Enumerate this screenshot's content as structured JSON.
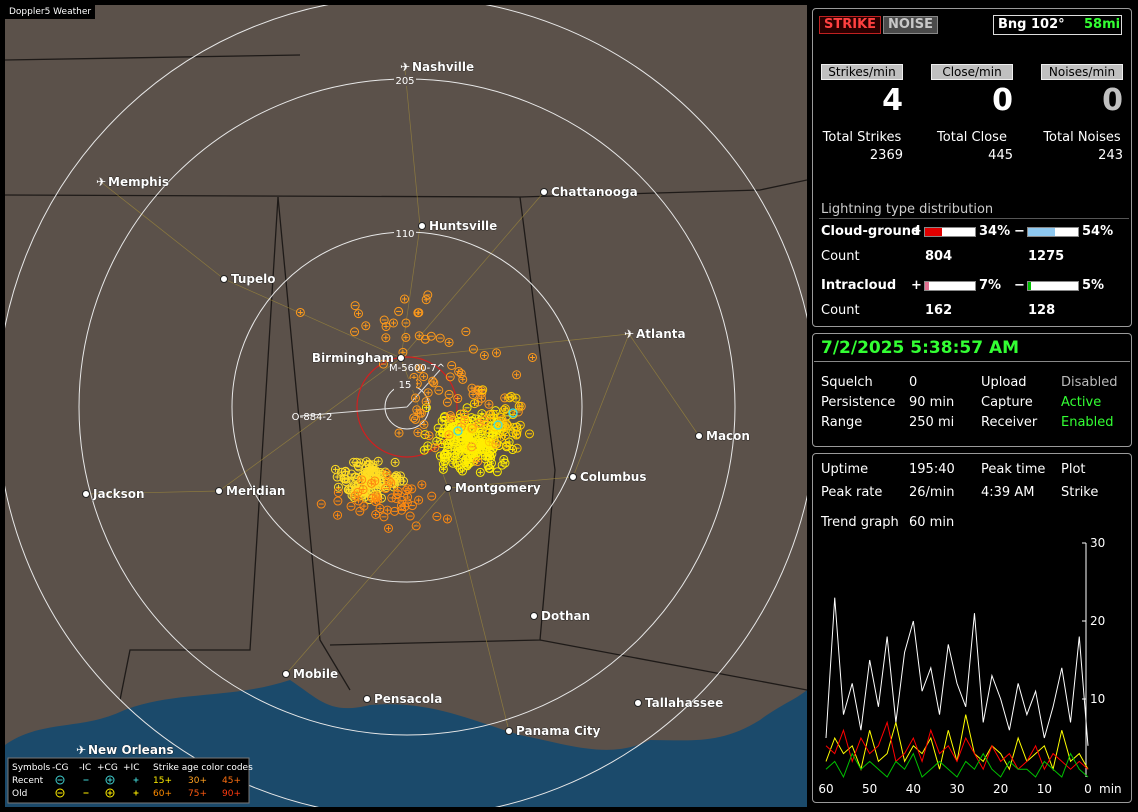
{
  "window": {
    "title": "Doppler5 Weather"
  },
  "map": {
    "cities": [
      "Nashville",
      "Memphis",
      "Chattanooga",
      "Huntsville",
      "Tupelo",
      "Atlanta",
      "Birmingham",
      "Macon",
      "Jackson",
      "Meridian",
      "Montgomery",
      "Columbus",
      "Dothan",
      "Mobile",
      "Pensacola",
      "Tallahassee",
      "Panama City",
      "New Orleans"
    ],
    "range_labels": [
      205,
      110,
      15
    ],
    "storm_labels": [
      "M-5600-7^",
      "O-884-2"
    ]
  },
  "legend": {
    "symbols_label": "Symbols",
    "columns": [
      "-CG",
      "-IC",
      "+CG",
      "+IC"
    ],
    "rows": [
      "Recent",
      "Old"
    ],
    "age_title": "Strike age color codes",
    "ages": [
      [
        "15+",
        "30+",
        "45+"
      ],
      [
        "60+",
        "75+",
        "90+"
      ]
    ]
  },
  "status": {
    "buttons": [
      "STRIKE",
      "NOISE"
    ],
    "bearing": "Bng 102°",
    "distance": "58mi",
    "rate_labels": [
      "Strikes/min",
      "Close/min",
      "Noises/min"
    ],
    "rates": [
      4,
      0,
      0
    ],
    "total_labels": [
      "Total Strikes",
      "Total Close",
      "Total Noises"
    ],
    "totals": [
      2369,
      445,
      243
    ]
  },
  "distribution": {
    "title": "Lightning type distribution",
    "count_label": "Count",
    "rows": [
      {
        "name": "Cloud-ground",
        "positive": {
          "sign": "+",
          "value": 34,
          "label": "34%",
          "count": 804,
          "color": "#e00000"
        },
        "negative": {
          "sign": "−",
          "value": 54,
          "label": "54%",
          "count": 1275,
          "color": "#8ec8f0"
        }
      },
      {
        "name": "Intracloud",
        "positive": {
          "sign": "+",
          "value": 7,
          "label": "7%",
          "count": 162,
          "color": "#e07090"
        },
        "negative": {
          "sign": "−",
          "value": 5,
          "label": "5%",
          "count": 128,
          "color": "#00c000"
        }
      }
    ]
  },
  "settings": {
    "datetime": "7/2/2025 5:38:57 AM",
    "rows": [
      [
        "Squelch",
        "0",
        "Upload",
        "Disabled"
      ],
      [
        "Persistence",
        "90 min",
        "Capture",
        "Active"
      ],
      [
        "Range",
        "250 mi",
        "Receiver",
        "Enabled"
      ]
    ]
  },
  "uptime": {
    "rows": [
      [
        "Uptime",
        "195:40",
        "Peak time",
        "Plot"
      ],
      [
        "Peak rate",
        "26/min",
        "4:39 AM",
        "Strike"
      ]
    ],
    "trend_label": "Trend graph",
    "trend_span": "60 min"
  },
  "chart_data": {
    "type": "line",
    "x_unit": "min",
    "x": [
      60,
      58,
      56,
      54,
      52,
      50,
      48,
      46,
      44,
      42,
      40,
      38,
      36,
      34,
      32,
      30,
      28,
      26,
      24,
      22,
      20,
      18,
      16,
      14,
      12,
      10,
      8,
      6,
      4,
      2,
      0
    ],
    "xlim": [
      60,
      0
    ],
    "xticks": [
      60,
      50,
      40,
      30,
      20,
      10,
      0
    ],
    "ylim": [
      0,
      30
    ],
    "yticks": [
      10,
      20,
      30
    ],
    "series": [
      {
        "color": "#ffffff",
        "values": [
          5,
          23,
          8,
          12,
          6,
          15,
          9,
          18,
          7,
          16,
          20,
          11,
          14,
          8,
          17,
          12,
          9,
          21,
          7,
          13,
          10,
          6,
          12,
          8,
          11,
          5,
          9,
          14,
          7,
          18,
          4
        ]
      },
      {
        "color": "#ffff00",
        "values": [
          2,
          5,
          3,
          4,
          1,
          6,
          2,
          3,
          7,
          2,
          4,
          3,
          5,
          1,
          6,
          2,
          8,
          3,
          2,
          4,
          3,
          1,
          5,
          2,
          3,
          4,
          1,
          6,
          2,
          3,
          1
        ]
      },
      {
        "color": "#ff0000",
        "values": [
          4,
          3,
          6,
          2,
          5,
          3,
          4,
          7,
          2,
          3,
          5,
          2,
          6,
          3,
          4,
          2,
          5,
          3,
          1,
          4,
          2,
          3,
          1,
          2,
          4,
          1,
          3,
          2,
          1,
          2,
          1
        ]
      },
      {
        "color": "#00c000",
        "values": [
          1,
          2,
          0,
          3,
          1,
          2,
          1,
          0,
          2,
          1,
          3,
          0,
          1,
          2,
          1,
          0,
          2,
          1,
          3,
          1,
          0,
          2,
          1,
          1,
          0,
          2,
          1,
          0,
          3,
          1,
          0
        ]
      }
    ]
  }
}
